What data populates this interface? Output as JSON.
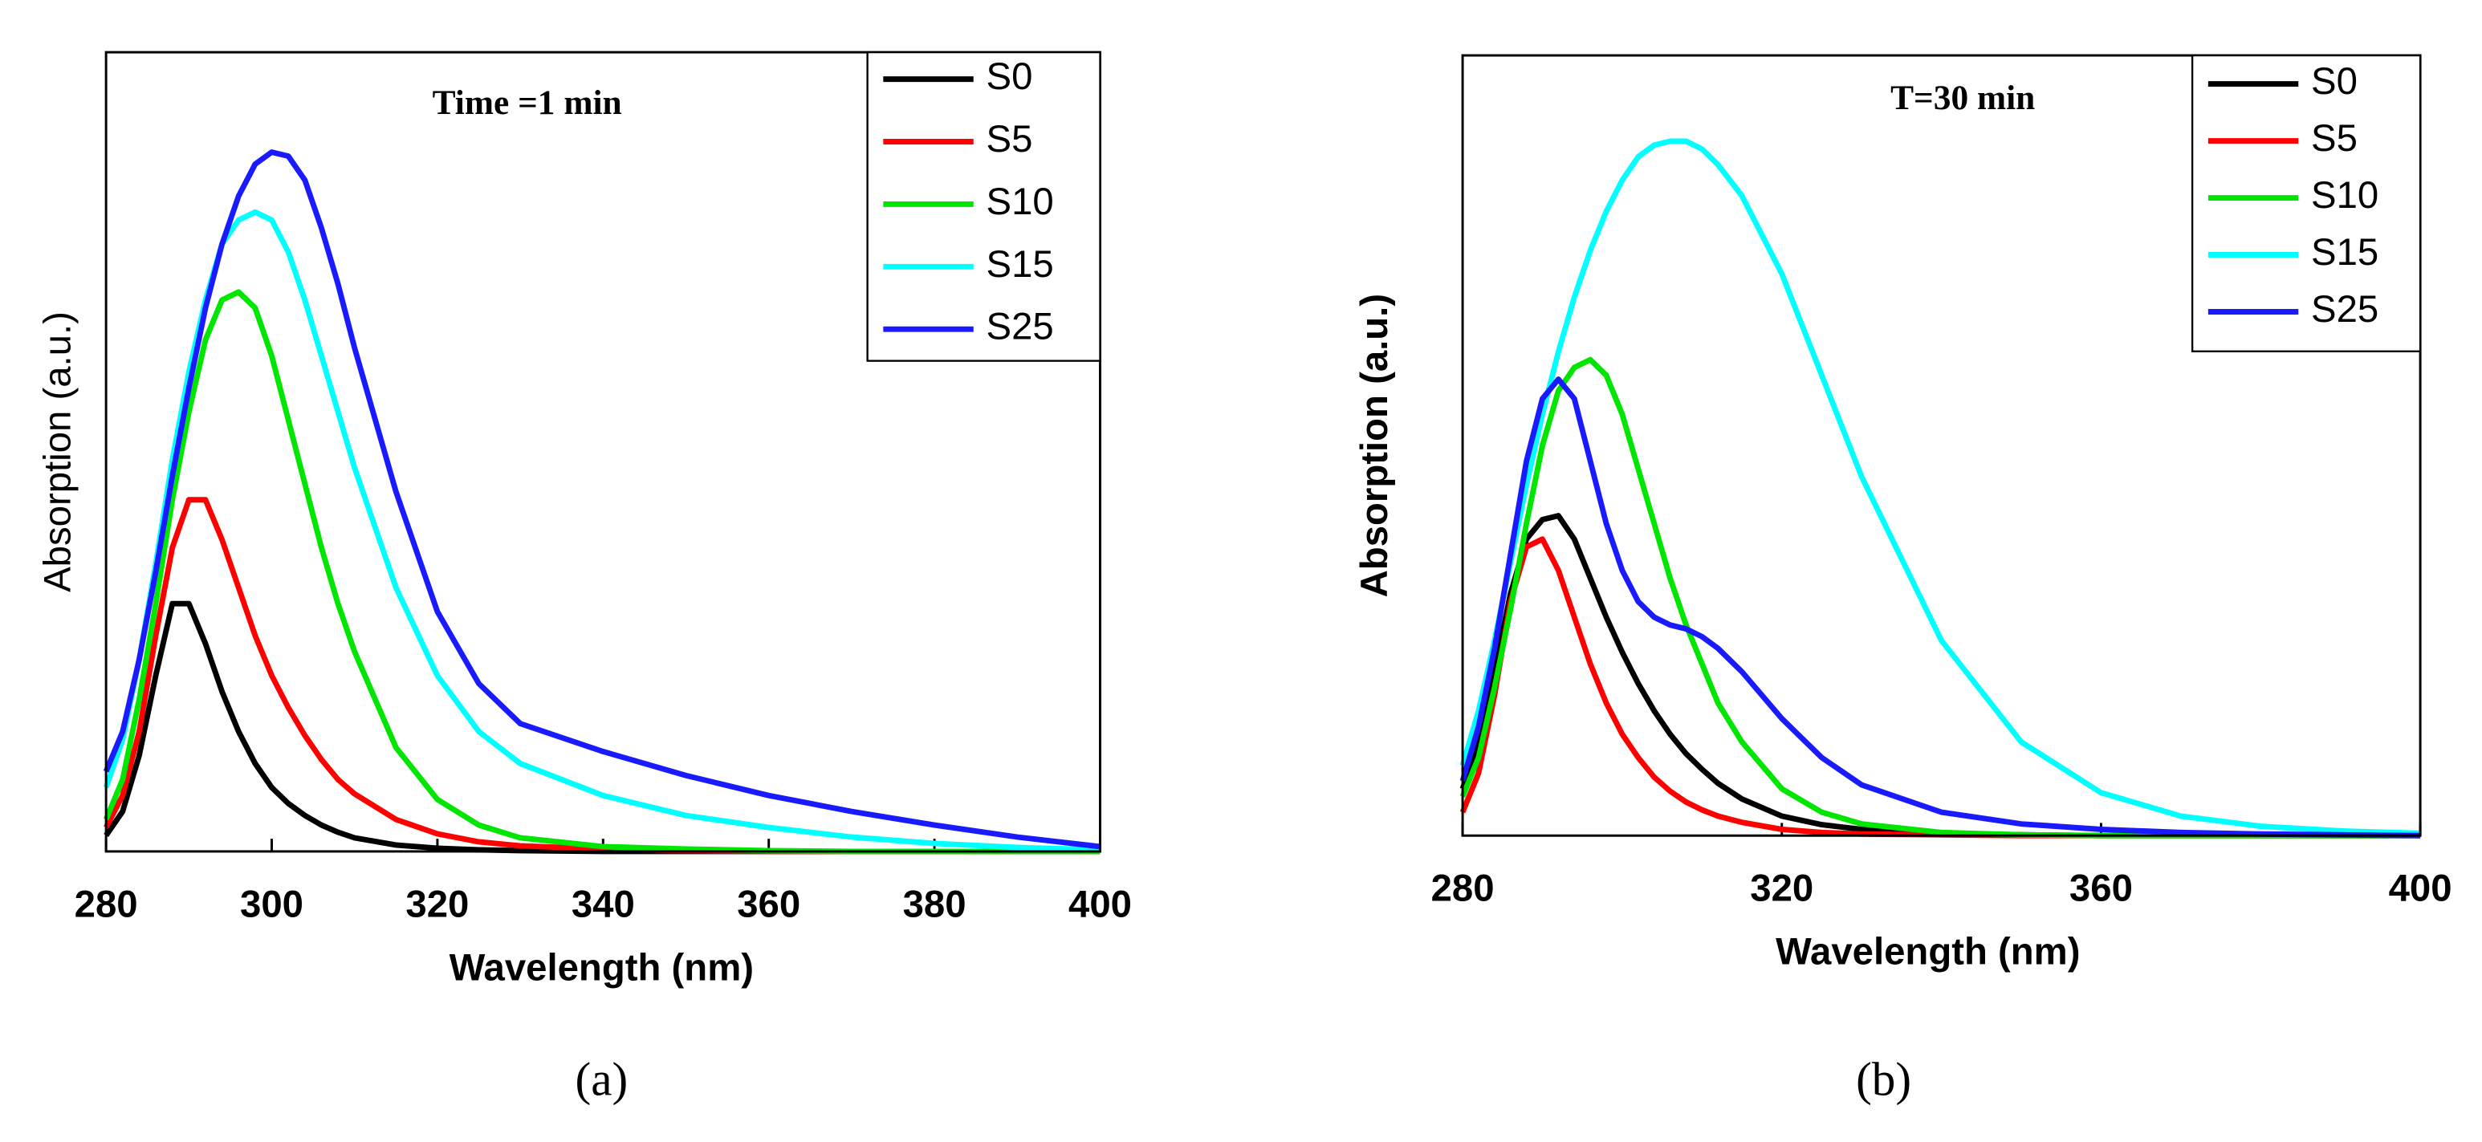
{
  "chart_data": [
    {
      "type": "line",
      "title": "Time =1 min",
      "x_label": "Wavelength (nm)",
      "y_label": "Absorption (a.u.)",
      "panel_label": "(a)",
      "legend": "upper right",
      "xlim": [
        280,
        400
      ],
      "xticks": [
        280,
        300,
        320,
        340,
        360,
        380,
        400
      ],
      "ylim": [
        0,
        1
      ],
      "x": [
        280,
        282,
        284,
        286,
        288,
        290,
        292,
        294,
        296,
        298,
        300,
        302,
        304,
        306,
        308,
        310,
        315,
        320,
        325,
        330,
        340,
        350,
        360,
        370,
        380,
        390,
        400
      ],
      "series": [
        {
          "name": "S0",
          "color": "#000000",
          "values": [
            0.02,
            0.05,
            0.12,
            0.22,
            0.31,
            0.31,
            0.26,
            0.2,
            0.15,
            0.11,
            0.08,
            0.06,
            0.045,
            0.033,
            0.024,
            0.017,
            0.008,
            0.004,
            0.002,
            0.001,
            0,
            0,
            0,
            0,
            0,
            0,
            0
          ]
        },
        {
          "name": "S5",
          "color": "#ff0000",
          "values": [
            0.03,
            0.07,
            0.15,
            0.27,
            0.38,
            0.44,
            0.44,
            0.39,
            0.33,
            0.27,
            0.22,
            0.18,
            0.145,
            0.115,
            0.09,
            0.072,
            0.04,
            0.022,
            0.012,
            0.007,
            0.003,
            0.001,
            0,
            0,
            0,
            0,
            0
          ]
        },
        {
          "name": "S10",
          "color": "#00e600",
          "values": [
            0.04,
            0.09,
            0.19,
            0.31,
            0.44,
            0.55,
            0.64,
            0.69,
            0.7,
            0.68,
            0.62,
            0.54,
            0.46,
            0.38,
            0.31,
            0.25,
            0.13,
            0.065,
            0.033,
            0.017,
            0.006,
            0.003,
            0.001,
            0,
            0,
            0,
            0
          ]
        },
        {
          "name": "S15",
          "color": "#00ffff",
          "values": [
            0.08,
            0.14,
            0.24,
            0.36,
            0.49,
            0.6,
            0.69,
            0.76,
            0.79,
            0.8,
            0.79,
            0.75,
            0.69,
            0.62,
            0.55,
            0.48,
            0.33,
            0.22,
            0.15,
            0.11,
            0.07,
            0.045,
            0.03,
            0.018,
            0.01,
            0.005,
            0.002
          ]
        },
        {
          "name": "S25",
          "color": "#1a1aff",
          "values": [
            0.1,
            0.15,
            0.24,
            0.35,
            0.47,
            0.58,
            0.68,
            0.76,
            0.82,
            0.86,
            0.875,
            0.87,
            0.84,
            0.78,
            0.71,
            0.63,
            0.45,
            0.3,
            0.21,
            0.16,
            0.125,
            0.095,
            0.07,
            0.05,
            0.033,
            0.018,
            0.006
          ]
        }
      ]
    },
    {
      "type": "line",
      "title": "T=30 min",
      "x_label": "Wavelength (nm)",
      "y_label": "Absorption (a.u.)",
      "panel_label": "(b)",
      "legend": "upper right",
      "xlim": [
        280,
        400
      ],
      "xticks": [
        280,
        320,
        360,
        400
      ],
      "ylim": [
        0,
        1
      ],
      "x": [
        280,
        282,
        284,
        286,
        288,
        290,
        292,
        294,
        296,
        298,
        300,
        302,
        304,
        306,
        308,
        310,
        312,
        315,
        320,
        325,
        330,
        340,
        350,
        360,
        370,
        380,
        390,
        400
      ],
      "series": [
        {
          "name": "S0",
          "color": "#000000",
          "values": [
            0.06,
            0.12,
            0.21,
            0.31,
            0.38,
            0.405,
            0.41,
            0.38,
            0.33,
            0.28,
            0.235,
            0.195,
            0.16,
            0.13,
            0.105,
            0.085,
            0.067,
            0.047,
            0.025,
            0.014,
            0.008,
            0.003,
            0.001,
            0,
            0,
            0,
            0,
            0
          ]
        },
        {
          "name": "S5",
          "color": "#ff0000",
          "values": [
            0.03,
            0.08,
            0.18,
            0.3,
            0.37,
            0.38,
            0.34,
            0.28,
            0.22,
            0.17,
            0.13,
            0.1,
            0.075,
            0.057,
            0.043,
            0.033,
            0.025,
            0.017,
            0.008,
            0.004,
            0.002,
            0.001,
            0,
            0,
            0,
            0,
            0,
            0
          ]
        },
        {
          "name": "S10",
          "color": "#00e600",
          "values": [
            0.05,
            0.1,
            0.19,
            0.29,
            0.4,
            0.5,
            0.57,
            0.6,
            0.61,
            0.59,
            0.54,
            0.47,
            0.4,
            0.33,
            0.27,
            0.22,
            0.17,
            0.12,
            0.06,
            0.03,
            0.015,
            0.004,
            0.001,
            0,
            0,
            0,
            0,
            0
          ]
        },
        {
          "name": "S15",
          "color": "#00ffff",
          "values": [
            0.09,
            0.16,
            0.25,
            0.35,
            0.45,
            0.54,
            0.62,
            0.69,
            0.75,
            0.8,
            0.84,
            0.87,
            0.885,
            0.89,
            0.89,
            0.88,
            0.86,
            0.82,
            0.72,
            0.59,
            0.46,
            0.25,
            0.12,
            0.055,
            0.025,
            0.012,
            0.006,
            0.003
          ]
        },
        {
          "name": "S25",
          "color": "#1a1aff",
          "values": [
            0.07,
            0.14,
            0.24,
            0.36,
            0.48,
            0.56,
            0.585,
            0.56,
            0.48,
            0.4,
            0.34,
            0.3,
            0.28,
            0.27,
            0.265,
            0.255,
            0.24,
            0.21,
            0.15,
            0.1,
            0.065,
            0.03,
            0.015,
            0.008,
            0.004,
            0.002,
            0.001,
            0
          ]
        }
      ]
    }
  ]
}
